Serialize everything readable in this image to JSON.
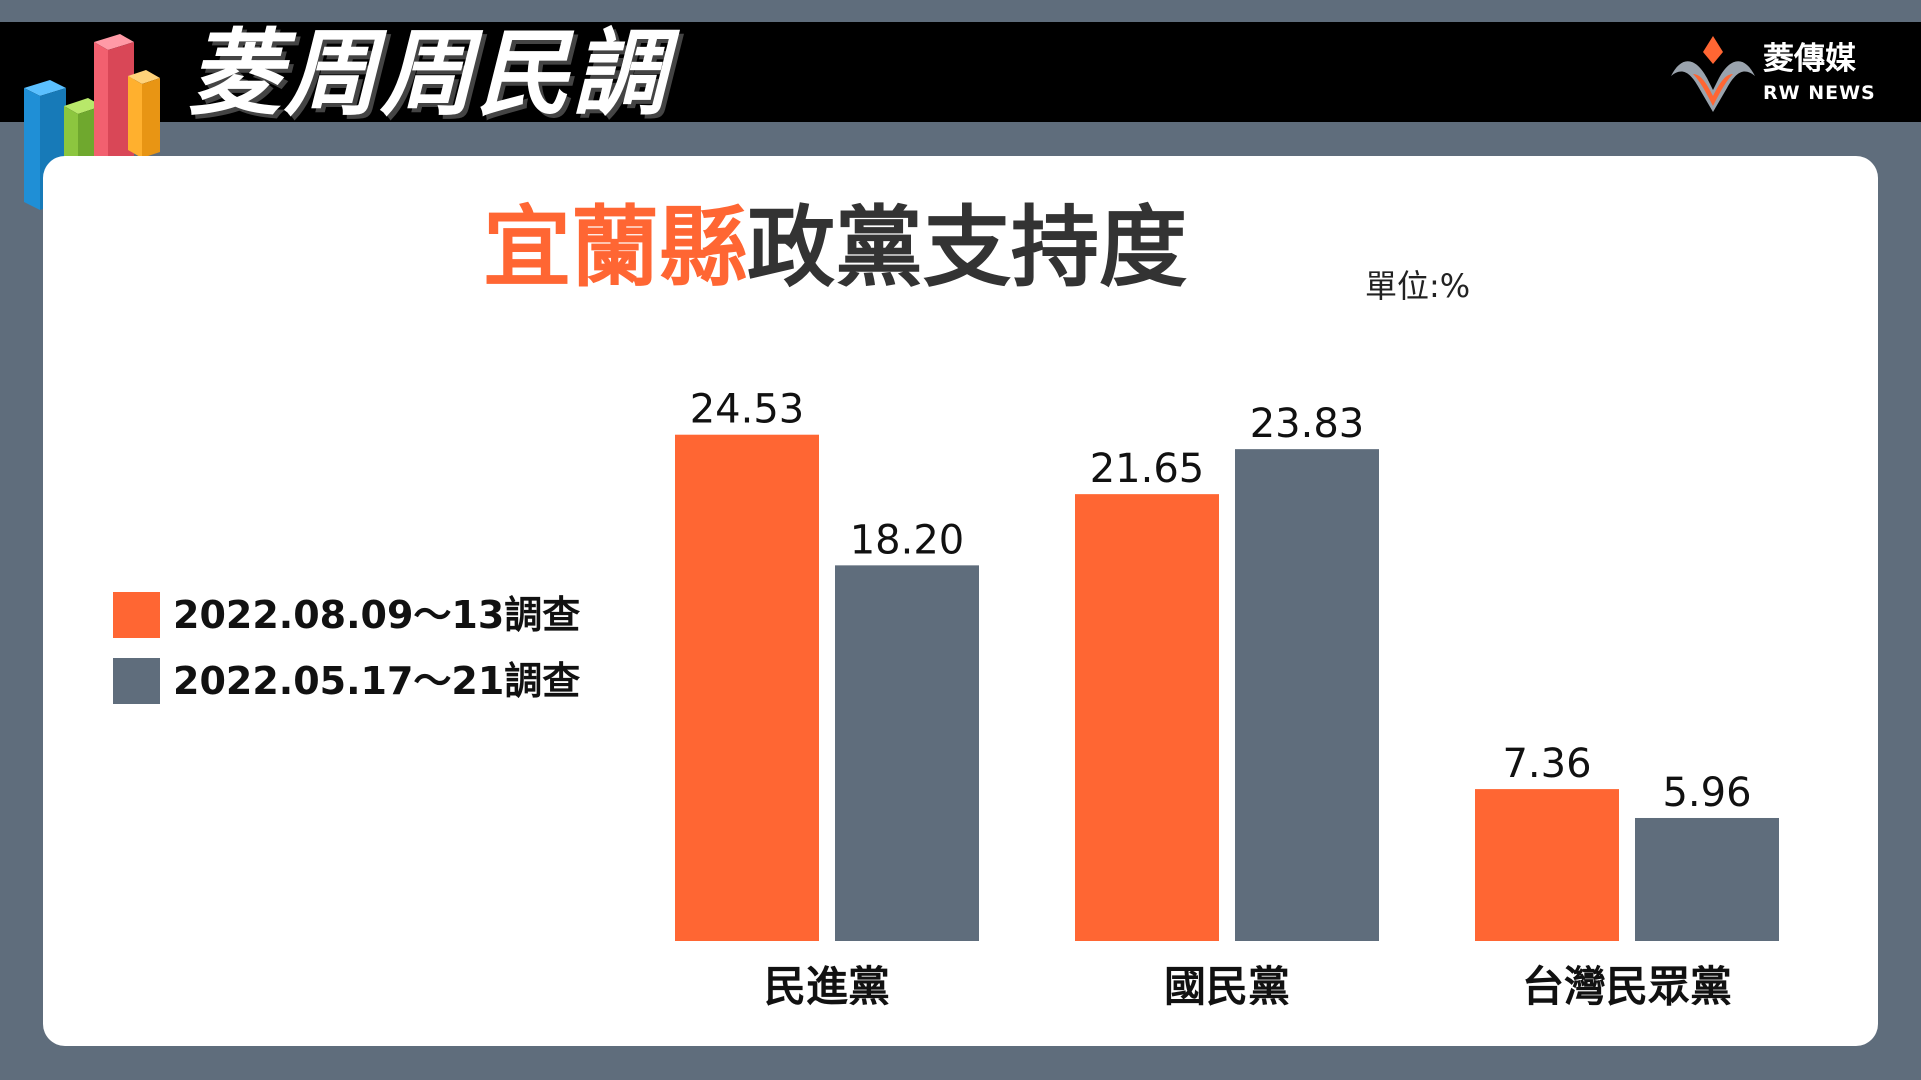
{
  "header": {
    "brand_title": "菱周周民調",
    "logo_cn": "菱傳媒",
    "logo_en": "RW NEWS"
  },
  "chart_data": {
    "type": "bar",
    "title_highlight": "宜蘭縣",
    "title_rest": "政黨支持度",
    "unit": "單位:%",
    "categories": [
      "民進黨",
      "國民黨",
      "台灣民眾黨"
    ],
    "series": [
      {
        "name": "2022.08.09～13調查",
        "color": "#ff6633",
        "values": [
          24.53,
          21.65,
          7.36
        ],
        "labels": [
          "24.53",
          "21.65",
          "7.36"
        ]
      },
      {
        "name": "2022.05.17～21調查",
        "color": "#5f6d7c",
        "values": [
          18.2,
          23.83,
          5.96
        ],
        "labels": [
          "18.20",
          "23.83",
          "5.96"
        ]
      }
    ],
    "ylim": [
      0,
      25
    ],
    "grid": false,
    "legend_position": "left"
  }
}
